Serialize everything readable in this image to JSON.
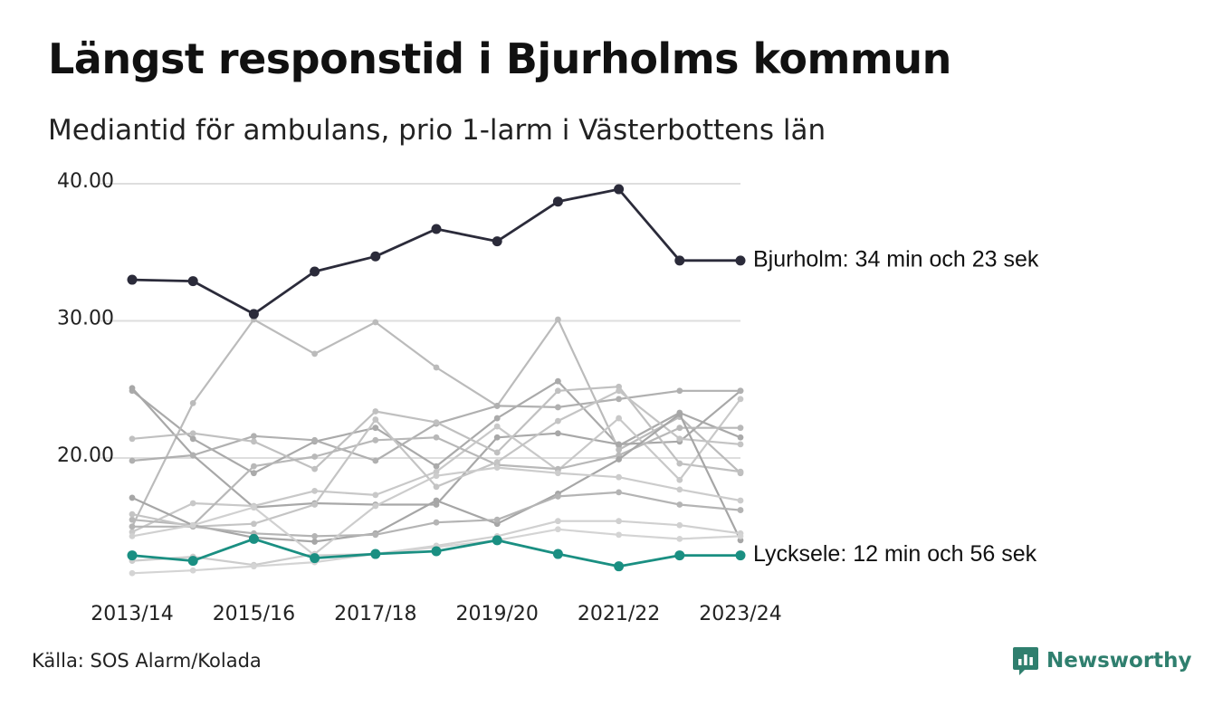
{
  "title": "Längst responstid i Bjurholms kommun",
  "subtitle": "Mediantid för ambulans, prio 1-larm i Västerbottens län",
  "source": "Källa: SOS Alarm/Kolada",
  "brand": {
    "name": "Newsworthy",
    "icon": "newsworthy-logo-icon",
    "color": "#2f7f6e"
  },
  "chart_data": {
    "type": "line",
    "x": [
      "2013/14",
      "2014/15",
      "2015/16",
      "2016/17",
      "2017/18",
      "2018/19",
      "2019/20",
      "2020/21",
      "2021/22",
      "2022/23",
      "2023/24"
    ],
    "x_tick_labels": [
      "2013/14",
      "2015/16",
      "2017/18",
      "2019/20",
      "2021/22",
      "2023/24"
    ],
    "y_ticks": [
      20,
      30,
      40
    ],
    "y_tick_labels": [
      "20.00",
      "30.00",
      "40.00"
    ],
    "ylim": [
      11,
      40
    ],
    "grid": true,
    "highlighted": [
      {
        "name": "Bjurholm",
        "label": "Bjurholm: 34 min och 23 sek",
        "color": "#2b2b3a",
        "values": [
          33.0,
          32.9,
          30.5,
          33.6,
          34.7,
          36.7,
          35.8,
          38.7,
          39.6,
          34.4,
          34.4
        ]
      },
      {
        "name": "Lycksele",
        "label": "Lycksele: 12 min och 56 sek",
        "color": "#1a8f82",
        "values": [
          12.9,
          12.5,
          14.1,
          12.7,
          13.0,
          13.2,
          14.0,
          13.0,
          12.1,
          12.9,
          12.9
        ]
      }
    ],
    "other_series": [
      {
        "color": "#aaaaaa",
        "values": [
          24.9,
          21.4,
          18.9,
          21.2,
          22.2,
          19.4,
          22.9,
          25.6,
          20.9,
          23.3,
          21.5
        ]
      },
      {
        "color": "#bbbbbb",
        "values": [
          15.0,
          24.0,
          30.1,
          27.6,
          29.9,
          26.6,
          23.8,
          30.1,
          20.6,
          23.0,
          18.9
        ]
      },
      {
        "color": "#a8a8a8",
        "values": [
          25.1,
          20.2,
          16.4,
          16.7,
          16.6,
          16.6,
          21.5,
          21.8,
          21.0,
          21.2,
          24.9
        ]
      },
      {
        "color": "#b0b0b0",
        "values": [
          19.8,
          20.2,
          21.6,
          21.3,
          19.8,
          22.5,
          23.8,
          23.7,
          24.3,
          24.9,
          24.9
        ]
      },
      {
        "color": "#c0c0c0",
        "values": [
          21.4,
          21.8,
          21.2,
          19.2,
          23.4,
          22.6,
          20.4,
          24.9,
          25.2,
          19.6,
          19.0
        ]
      },
      {
        "color": "#c8c8c8",
        "values": [
          14.6,
          16.7,
          16.5,
          17.6,
          17.3,
          19.0,
          22.3,
          19.1,
          22.9,
          18.4,
          24.3
        ]
      },
      {
        "color": "#b8b8b8",
        "values": [
          15.5,
          15.1,
          19.4,
          20.1,
          21.3,
          21.5,
          19.5,
          19.2,
          20.2,
          22.2,
          22.2
        ]
      },
      {
        "color": "#c4c4c4",
        "values": [
          15.9,
          15.0,
          15.2,
          16.6,
          22.8,
          17.9,
          19.7,
          22.7,
          24.9,
          21.4,
          21.0
        ]
      },
      {
        "color": "#a6a6a6",
        "values": [
          17.1,
          15.1,
          14.2,
          13.9,
          14.5,
          16.9,
          15.2,
          17.4,
          19.9,
          23.2,
          14.0
        ]
      },
      {
        "color": "#b4b4b4",
        "values": [
          15.0,
          15.0,
          14.5,
          14.3,
          14.4,
          15.3,
          15.5,
          17.2,
          17.5,
          16.6,
          16.2
        ]
      },
      {
        "color": "#cccccc",
        "values": [
          12.5,
          12.8,
          12.2,
          13.0,
          16.5,
          18.7,
          19.3,
          18.9,
          18.6,
          17.7,
          16.9
        ]
      },
      {
        "color": "#d0d0d0",
        "values": [
          14.3,
          15.1,
          16.4,
          12.9,
          13.0,
          13.6,
          14.3,
          15.4,
          15.4,
          15.1,
          14.5
        ]
      },
      {
        "color": "#d4d4d4",
        "values": [
          11.6,
          11.8,
          12.1,
          12.4,
          13.0,
          13.5,
          14.0,
          14.8,
          14.4,
          14.1,
          14.3
        ]
      }
    ]
  }
}
